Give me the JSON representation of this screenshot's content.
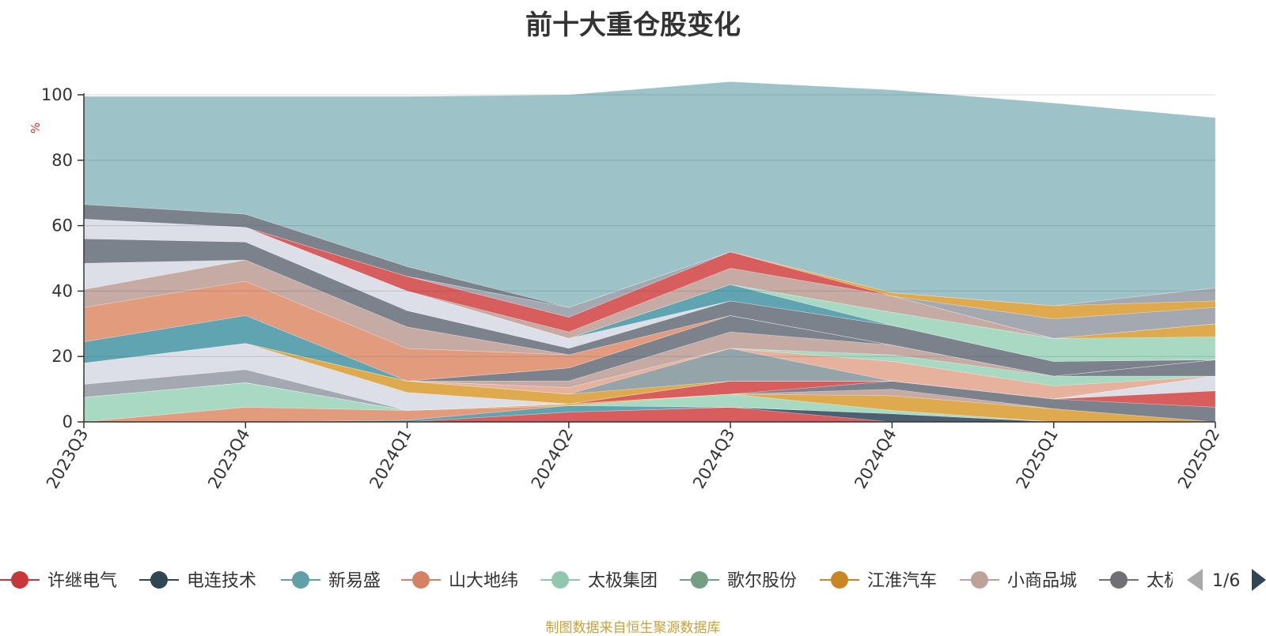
{
  "chart_data": {
    "type": "area",
    "stacked": true,
    "title": "前十大重仓股变化",
    "ylabel": "%",
    "ylim": [
      0,
      100
    ],
    "yticks": [
      0,
      20,
      40,
      60,
      80,
      100
    ],
    "grid": true,
    "categories": [
      "2023Q3",
      "2023Q4",
      "2024Q1",
      "2024Q2",
      "2024Q3",
      "2024Q4",
      "2025Q1",
      "2025Q2"
    ],
    "series": [
      {
        "name": "许继电气",
        "color": "#d44c4c",
        "values": [
          0,
          0,
          0,
          3,
          4.5,
          0,
          0,
          0
        ]
      },
      {
        "name": "电连技术",
        "color": "#3a4f63",
        "values": [
          0,
          0,
          0,
          0,
          0,
          2.5,
          0,
          0
        ]
      },
      {
        "name": "新易盛",
        "color": "#4f9aa8",
        "values": [
          0,
          0,
          0.5,
          2,
          0,
          0,
          0,
          0
        ]
      },
      {
        "name": "山大地纬",
        "color": "#e09070",
        "values": [
          0,
          4.5,
          3,
          0,
          0,
          0,
          0,
          0
        ]
      },
      {
        "name": "太极集团",
        "color": "#9fd5bb",
        "values": [
          7.5,
          7.5,
          0,
          0,
          4,
          1,
          0,
          0
        ]
      },
      {
        "name": "歌尔股份",
        "color": "#6f9f88",
        "values": [
          0,
          0,
          0,
          0,
          0,
          0,
          0,
          0
        ]
      },
      {
        "name": "江淮汽车",
        "color": "#dba13a",
        "values": [
          0,
          0,
          0,
          0.5,
          0,
          4.5,
          4,
          0
        ]
      },
      {
        "name": "小商品城",
        "color": "#c0a29a",
        "values": [
          0,
          0,
          0,
          0,
          0,
          2,
          0,
          0
        ]
      },
      {
        "name": "太极实业",
        "color": "#6e7480",
        "values": [
          0,
          0,
          0,
          0,
          0,
          2.5,
          3,
          4.5
        ]
      },
      {
        "name": "",
        "color": "#d44c4c",
        "values": [
          0,
          0,
          0,
          0,
          4,
          0,
          0,
          5
        ]
      },
      {
        "name": "",
        "color": "#d8dce4",
        "values": [
          0,
          0,
          0,
          0,
          0,
          0,
          0,
          4.5
        ]
      },
      {
        "name": "",
        "color": "#9aa0a8",
        "values": [
          4,
          4,
          0,
          0,
          0,
          0,
          0,
          0
        ]
      },
      {
        "name": "",
        "color": "#d8dce4",
        "values": [
          6.5,
          8,
          5.5,
          0,
          0,
          0,
          0,
          0
        ]
      },
      {
        "name": "",
        "color": "#dba13a",
        "values": [
          0,
          0,
          3.5,
          3,
          0,
          0,
          0,
          0
        ]
      },
      {
        "name": "",
        "color": "#8a9aa0",
        "values": [
          0,
          0,
          0,
          0,
          10,
          0,
          0,
          0
        ]
      },
      {
        "name": "",
        "color": "#e3aa93",
        "values": [
          0,
          0,
          0,
          2,
          0,
          6,
          4,
          0
        ]
      },
      {
        "name": "",
        "color": "#9fd5bb",
        "values": [
          0,
          0,
          0,
          0,
          0,
          2,
          3,
          0
        ]
      },
      {
        "name": "",
        "color": "#c0a29a",
        "values": [
          0,
          0,
          0,
          2,
          5,
          3,
          0,
          0
        ]
      },
      {
        "name": "",
        "color": "#6e7480",
        "values": [
          0,
          0,
          0,
          4,
          5,
          0,
          0,
          5
        ]
      },
      {
        "name": "",
        "color": "#4f9aa8",
        "values": [
          6.5,
          8.5,
          0,
          0,
          0,
          0,
          0,
          0
        ]
      },
      {
        "name": "",
        "color": "#e09070",
        "values": [
          10.5,
          10.5,
          10,
          4,
          0,
          0,
          0,
          0
        ]
      },
      {
        "name": "",
        "color": "#c0a29a",
        "values": [
          5.5,
          6.5,
          6.5,
          0,
          0,
          0,
          0,
          0
        ]
      },
      {
        "name": "",
        "color": "#d8dce4",
        "values": [
          8,
          0,
          0,
          0,
          0,
          0,
          0,
          0
        ]
      },
      {
        "name": "",
        "color": "#6e7480",
        "values": [
          7.5,
          5.5,
          5,
          2,
          4.5,
          6,
          4.5,
          0
        ]
      },
      {
        "name": "",
        "color": "#d8dce4",
        "values": [
          6,
          4.5,
          6,
          3,
          0,
          0,
          0,
          0
        ]
      },
      {
        "name": "",
        "color": "#4f9aa8",
        "values": [
          0,
          0,
          0,
          0,
          5,
          0,
          0,
          0
        ]
      },
      {
        "name": "",
        "color": "#9fd5bb",
        "values": [
          0,
          0,
          0,
          0,
          0,
          4,
          7,
          7
        ]
      },
      {
        "name": "",
        "color": "#dba13a",
        "values": [
          0,
          0,
          0,
          0,
          0,
          0,
          0,
          4
        ]
      },
      {
        "name": "",
        "color": "#c0a29a",
        "values": [
          0,
          0,
          0,
          2,
          5,
          5,
          0,
          0
        ]
      },
      {
        "name": "",
        "color": "#d44c4c",
        "values": [
          0,
          0,
          4.5,
          4.5,
          5,
          0,
          0,
          0
        ]
      },
      {
        "name": "",
        "color": "#9aa0a8",
        "values": [
          0,
          0,
          0,
          3,
          0,
          0,
          6,
          5
        ]
      },
      {
        "name": "",
        "color": "#dba13a",
        "values": [
          0,
          0,
          0,
          0,
          0,
          1,
          4,
          2
        ]
      },
      {
        "name": "",
        "color": "#9aa0a8",
        "values": [
          0,
          0,
          0,
          0,
          0,
          0,
          0,
          4
        ]
      },
      {
        "name": "",
        "color": "#6e7480",
        "values": [
          4.5,
          4,
          3,
          0,
          0,
          0,
          0,
          0
        ]
      },
      {
        "name": "",
        "color": "#92bbc2",
        "values": [
          33,
          36,
          52,
          65,
          52,
          62,
          62,
          52
        ]
      }
    ]
  },
  "legend": {
    "items": [
      {
        "name": "许继电气",
        "color": "#c9363a"
      },
      {
        "name": "电连技术",
        "color": "#2f4554"
      },
      {
        "name": "新易盛",
        "color": "#61a0a8"
      },
      {
        "name": "山大地纬",
        "color": "#d48265"
      },
      {
        "name": "太极集团",
        "color": "#91c7ae"
      },
      {
        "name": "歌尔股份",
        "color": "#749f83"
      },
      {
        "name": "江淮汽车",
        "color": "#ca8622"
      },
      {
        "name": "小商品城",
        "color": "#bda29a"
      },
      {
        "name": "太极",
        "color": "#6e7074"
      }
    ],
    "page": "1/6"
  },
  "source": "制图数据来自恒生聚源数据库"
}
